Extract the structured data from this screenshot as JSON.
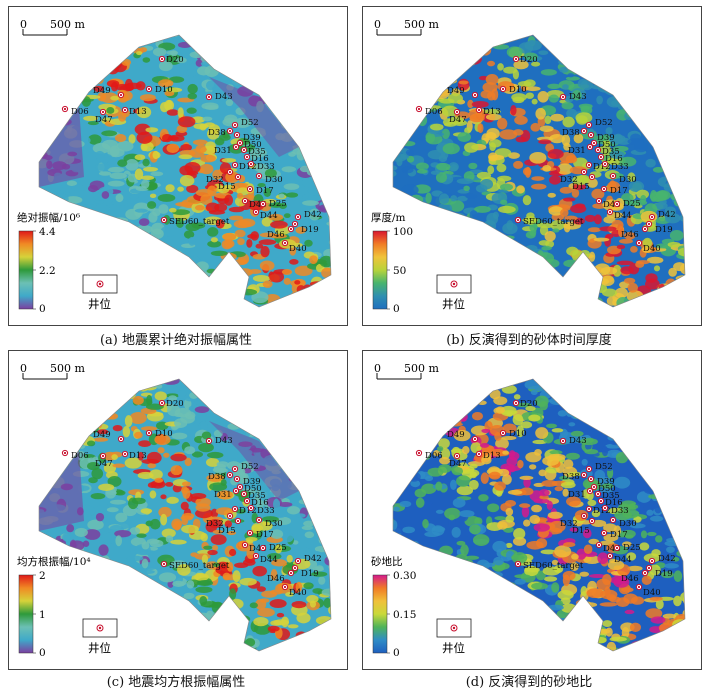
{
  "panels": [
    {
      "id": "a",
      "caption": "(a) 地震累计绝对振幅属性",
      "cb_title": "绝对振幅/10⁶",
      "ticks": [
        "4.4",
        "2.2",
        "0"
      ],
      "cmap": "amp",
      "scale_label": "0     500 m",
      "legend": "井位"
    },
    {
      "id": "b",
      "caption": "(b) 反演得到的砂体时间厚度",
      "cb_title": "厚度/m",
      "ticks": [
        "100",
        "50",
        "0"
      ],
      "cmap": "thick",
      "scale_label": "0     500 m",
      "legend": "井位"
    },
    {
      "id": "c",
      "caption": "(c) 地震均方根振幅属性",
      "cb_title": "均方根振幅/10⁴",
      "ticks": [
        "2",
        "1",
        "0"
      ],
      "cmap": "amp",
      "scale_label": "0     500 m",
      "legend": "井位"
    },
    {
      "id": "d",
      "caption": "(d) 反演得到的砂地比",
      "cb_title": "砂地比",
      "ticks": [
        "0.30",
        "0.15",
        "0"
      ],
      "cmap": "ratio",
      "scale_label": "0     500 m",
      "legend": "井位"
    }
  ],
  "scale": {
    "zero": "0",
    "dist": "500 m"
  },
  "wells": [
    "D20",
    "D10",
    "D49",
    "D13",
    "D47",
    "D06",
    "D43",
    "D52",
    "D38",
    "D39",
    "D31",
    "D50",
    "D35",
    "D16",
    "D12",
    "D33",
    "D32",
    "D30",
    "D15",
    "D17",
    "D45",
    "D25",
    "D44",
    "D42",
    "D46",
    "D19",
    "D40",
    "SED60_target"
  ],
  "colors": {
    "amp": [
      "#7b3fa0",
      "#3fa9c9",
      "#6cc0b4",
      "#2e9a3b",
      "#d6d23a",
      "#f08a24",
      "#e01919"
    ],
    "thick": [
      "#1f6fbf",
      "#2f8fb0",
      "#48b46e",
      "#b8d33a",
      "#f0c33a",
      "#f07c26",
      "#d9162f"
    ],
    "ratio": [
      "#1e5fbf",
      "#2f8cc6",
      "#4fb35a",
      "#c9d93a",
      "#f0c03a",
      "#f07a26",
      "#d41a8c"
    ]
  }
}
